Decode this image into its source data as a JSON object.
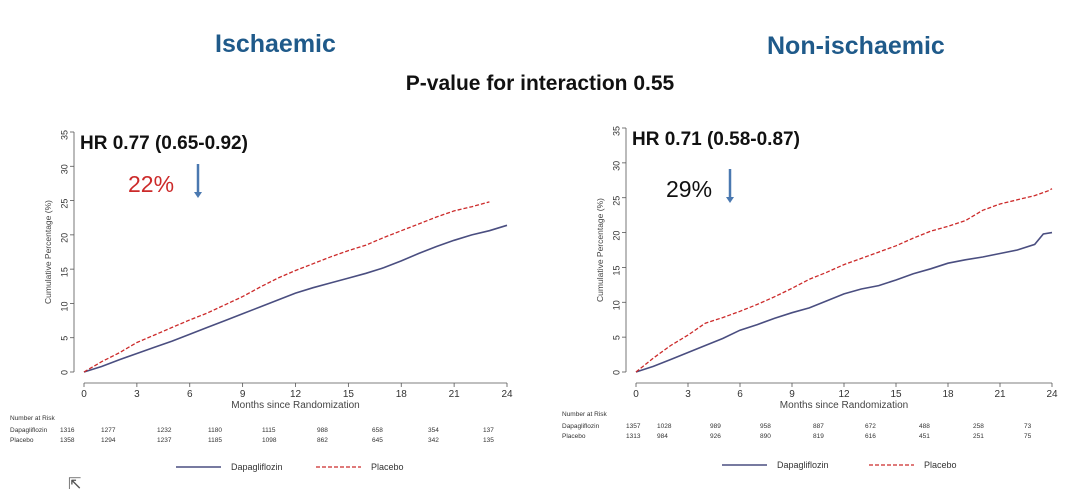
{
  "subtitle": "P-value for interaction 0.55",
  "colors": {
    "title": "#1f5a8a",
    "dapagliflozin": "#4a4e80",
    "placebo": "#cc2a2a",
    "pct_left": "#cc2a2a",
    "pct_right": "#111111",
    "arrow": "#4a78b0"
  },
  "chart_data": [
    {
      "type": "line",
      "title": "Ischaemic",
      "hr_text": "HR 0.77 (0.65-0.92)",
      "reduction_text": "22%",
      "xlabel": "Months since Randomization",
      "ylabel": "Cumulative Percentage (%)",
      "xlim": [
        0,
        24
      ],
      "ylim": [
        0,
        35
      ],
      "xticks": [
        "0",
        "3",
        "6",
        "9",
        "12",
        "15",
        "18",
        "21",
        "24"
      ],
      "yticks": [
        "0",
        "5",
        "10",
        "15",
        "20",
        "25",
        "30",
        "35"
      ],
      "series": [
        {
          "name": "Dapagliflozin",
          "x": [
            0,
            1,
            2,
            3,
            4,
            5,
            6,
            7,
            8,
            9,
            10,
            11,
            12,
            13,
            14,
            15,
            16,
            17,
            18,
            19,
            20,
            21,
            22,
            23,
            24
          ],
          "values": [
            0,
            0.8,
            1.8,
            2.7,
            3.6,
            4.5,
            5.5,
            6.5,
            7.5,
            8.5,
            9.5,
            10.5,
            11.5,
            12.3,
            13.0,
            13.7,
            14.4,
            15.2,
            16.2,
            17.3,
            18.3,
            19.2,
            20.0,
            20.6,
            21.4
          ]
        },
        {
          "name": "Placebo",
          "x": [
            0,
            1,
            2,
            3,
            4,
            5,
            6,
            7,
            8,
            9,
            10,
            11,
            12,
            13,
            14,
            15,
            16,
            17,
            18,
            19,
            20,
            21,
            22,
            23
          ],
          "values": [
            0,
            1.5,
            2.8,
            4.3,
            5.4,
            6.5,
            7.6,
            8.6,
            9.8,
            11.0,
            12.4,
            13.7,
            14.8,
            15.8,
            16.8,
            17.7,
            18.5,
            19.6,
            20.6,
            21.6,
            22.6,
            23.5,
            24.1,
            24.8
          ]
        }
      ],
      "risk_table": {
        "header": "Number at Risk",
        "rows": [
          {
            "label": "Dapagliflozin",
            "values": [
              "1316",
              "1277",
              "1232",
              "1180",
              "1115",
              "988",
              "658",
              "354",
              "137"
            ]
          },
          {
            "label": "Placebo",
            "values": [
              "1358",
              "1294",
              "1237",
              "1185",
              "1098",
              "862",
              "645",
              "342",
              "135"
            ]
          }
        ]
      },
      "legend": [
        "Dapagliflozin",
        "Placebo"
      ]
    },
    {
      "type": "line",
      "title": "Non-ischaemic",
      "hr_text": "HR 0.71 (0.58-0.87)",
      "reduction_text": "29%",
      "xlabel": "Months since Randomization",
      "ylabel": "Cumulative Percentage (%)",
      "xlim": [
        0,
        24
      ],
      "ylim": [
        0,
        35
      ],
      "xticks": [
        "0",
        "3",
        "6",
        "9",
        "12",
        "15",
        "18",
        "21",
        "24"
      ],
      "yticks": [
        "0",
        "5",
        "10",
        "15",
        "20",
        "25",
        "30",
        "35"
      ],
      "series": [
        {
          "name": "Dapagliflozin",
          "x": [
            0,
            1,
            2,
            3,
            4,
            5,
            6,
            7,
            8,
            9,
            10,
            11,
            12,
            13,
            14,
            15,
            16,
            17,
            18,
            19,
            20,
            21,
            22,
            23,
            23.5,
            24
          ],
          "values": [
            0,
            0.8,
            1.8,
            2.8,
            3.8,
            4.8,
            6.0,
            6.8,
            7.7,
            8.5,
            9.2,
            10.2,
            11.2,
            11.9,
            12.4,
            13.2,
            14.1,
            14.8,
            15.6,
            16.1,
            16.5,
            17.0,
            17.5,
            18.3,
            19.8,
            20.0
          ]
        },
        {
          "name": "Placebo",
          "x": [
            0,
            1,
            2,
            3,
            4,
            5,
            6,
            7,
            8,
            9,
            10,
            11,
            12,
            13,
            14,
            15,
            16,
            17,
            18,
            19,
            20,
            21,
            22,
            23,
            23.8,
            24
          ],
          "values": [
            0,
            2.0,
            3.8,
            5.3,
            7.0,
            7.8,
            8.7,
            9.7,
            10.8,
            12.0,
            13.3,
            14.3,
            15.4,
            16.3,
            17.2,
            18.1,
            19.2,
            20.2,
            20.9,
            21.7,
            23.2,
            24.1,
            24.7,
            25.3,
            26.0,
            26.3
          ]
        }
      ],
      "risk_table": {
        "header": "Number at Risk",
        "rows": [
          {
            "label": "Dapagliflozin",
            "values": [
              "1357",
              "1028",
              "989",
              "958",
              "887",
              "672",
              "488",
              "258",
              "73"
            ]
          },
          {
            "label": "Placebo",
            "values": [
              "1313",
              "984",
              "926",
              "890",
              "819",
              "616",
              "451",
              "251",
              "75"
            ]
          }
        ]
      },
      "legend": [
        "Dapagliflozin",
        "Placebo"
      ]
    }
  ]
}
